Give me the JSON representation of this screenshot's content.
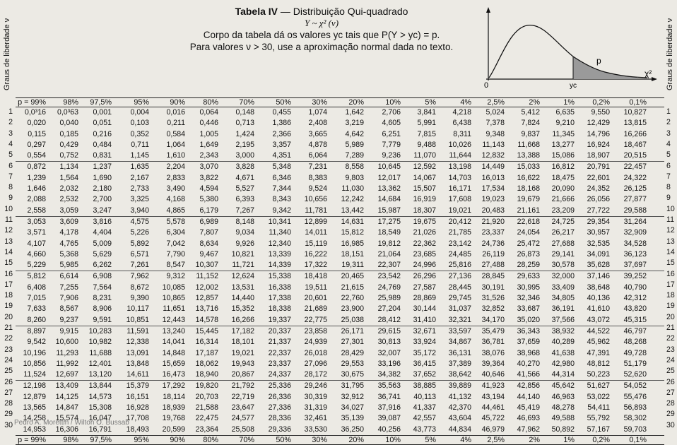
{
  "side_label": "Graus de liberdade ν",
  "header": {
    "title_bold": "Tabela IV",
    "title_rest": " — Distribuição Qui-quadrado",
    "subtitle": "Y ~ χ² (ν)",
    "line1": "Corpo da tabela dá os valores yc tais que P(Y > yc) = p.",
    "line2": "Para valores ν > 30, use a aproximação normal dada no texto."
  },
  "graph": {
    "origin_label": "0",
    "p_label": "p",
    "axis_label": "χ²",
    "yc_label": "yc"
  },
  "columns": [
    "p = 99%",
    "98%",
    "97,5%",
    "95%",
    "90%",
    "80%",
    "70%",
    "50%",
    "30%",
    "20%",
    "10%",
    "5%",
    "4%",
    "2,5%",
    "2%",
    "1%",
    "0,2%",
    "0,1%"
  ],
  "footer_columns": [
    "p = 99%",
    "98%",
    "97,5%",
    "95%",
    "90%",
    "80%",
    "70%",
    "50%",
    "30%",
    "20%",
    "10%",
    "5%",
    "4%",
    "2,5%",
    "2%",
    "1%",
    "0,2%",
    "0,1%"
  ],
  "rows": [
    {
      "df": "1",
      "values": [
        "0,0³16",
        "0,0³63",
        "0,001",
        "0,004",
        "0,016",
        "0,064",
        "0,148",
        "0,455",
        "1,074",
        "1,642",
        "2,706",
        "3,841",
        "4,218",
        "5,024",
        "5,412",
        "6,635",
        "9,550",
        "10,827"
      ]
    },
    {
      "df": "2",
      "values": [
        "0,020",
        "0,040",
        "0,051",
        "0,103",
        "0,211",
        "0,446",
        "0,713",
        "1,386",
        "2,408",
        "3,219",
        "4,605",
        "5,991",
        "6,438",
        "7,378",
        "7,824",
        "9,210",
        "12,429",
        "13,815"
      ]
    },
    {
      "df": "3",
      "values": [
        "0,115",
        "0,185",
        "0,216",
        "0,352",
        "0,584",
        "1,005",
        "1,424",
        "2,366",
        "3,665",
        "4,642",
        "6,251",
        "7,815",
        "8,311",
        "9,348",
        "9,837",
        "11,345",
        "14,796",
        "16,266"
      ]
    },
    {
      "df": "4",
      "values": [
        "0,297",
        "0,429",
        "0,484",
        "0,711",
        "1,064",
        "1,649",
        "2,195",
        "3,357",
        "4,878",
        "5,989",
        "7,779",
        "9,488",
        "10,026",
        "11,143",
        "11,668",
        "13,277",
        "16,924",
        "18,467"
      ]
    },
    {
      "df": "5",
      "values": [
        "0,554",
        "0,752",
        "0,831",
        "1,145",
        "1,610",
        "2,343",
        "3,000",
        "4,351",
        "6,064",
        "7,289",
        "9,236",
        "11,070",
        "11,644",
        "12,832",
        "13,388",
        "15,086",
        "18,907",
        "20,515"
      ]
    },
    {
      "df": "6",
      "values": [
        "0,872",
        "1,134",
        "1,237",
        "1,635",
        "2,204",
        "3,070",
        "3,828",
        "5,348",
        "7,231",
        "8,558",
        "10,645",
        "12,592",
        "13,198",
        "14,449",
        "15,033",
        "16,812",
        "20,791",
        "22,457"
      ]
    },
    {
      "df": "7",
      "values": [
        "1,239",
        "1,564",
        "1,690",
        "2,167",
        "2,833",
        "3,822",
        "4,671",
        "6,346",
        "8,383",
        "9,803",
        "12,017",
        "14,067",
        "14,703",
        "16,013",
        "16,622",
        "18,475",
        "22,601",
        "24,322"
      ]
    },
    {
      "df": "8",
      "values": [
        "1,646",
        "2,032",
        "2,180",
        "2,733",
        "3,490",
        "4,594",
        "5,527",
        "7,344",
        "9,524",
        "11,030",
        "13,362",
        "15,507",
        "16,171",
        "17,534",
        "18,168",
        "20,090",
        "24,352",
        "26,125"
      ]
    },
    {
      "df": "9",
      "values": [
        "2,088",
        "2,532",
        "2,700",
        "3,325",
        "4,168",
        "5,380",
        "6,393",
        "8,343",
        "10,656",
        "12,242",
        "14,684",
        "16,919",
        "17,608",
        "19,023",
        "19,679",
        "21,666",
        "26,056",
        "27,877"
      ]
    },
    {
      "df": "10",
      "values": [
        "2,558",
        "3,059",
        "3,247",
        "3,940",
        "4,865",
        "6,179",
        "7,267",
        "9,342",
        "11,781",
        "13,442",
        "15,987",
        "18,307",
        "19,021",
        "20,483",
        "21,161",
        "23,209",
        "27,722",
        "29,588"
      ]
    },
    {
      "df": "11",
      "values": [
        "3,053",
        "3,609",
        "3,816",
        "4,575",
        "5,578",
        "6,989",
        "8,148",
        "10,341",
        "12,899",
        "14,631",
        "17,275",
        "19,675",
        "20,412",
        "21,920",
        "22,618",
        "24,725",
        "29,354",
        "31,264"
      ]
    },
    {
      "df": "12",
      "values": [
        "3,571",
        "4,178",
        "4,404",
        "5,226",
        "6,304",
        "7,807",
        "9,034",
        "11,340",
        "14,011",
        "15,812",
        "18,549",
        "21,026",
        "21,785",
        "23,337",
        "24,054",
        "26,217",
        "30,957",
        "32,909"
      ]
    },
    {
      "df": "13",
      "values": [
        "4,107",
        "4,765",
        "5,009",
        "5,892",
        "7,042",
        "8,634",
        "9,926",
        "12,340",
        "15,119",
        "16,985",
        "19,812",
        "22,362",
        "23,142",
        "24,736",
        "25,472",
        "27,688",
        "32,535",
        "34,528"
      ]
    },
    {
      "df": "14",
      "values": [
        "4,660",
        "5,368",
        "5,629",
        "6,571",
        "7,790",
        "9,467",
        "10,821",
        "13,339",
        "16,222",
        "18,151",
        "21,064",
        "23,685",
        "24,485",
        "26,119",
        "26,873",
        "29,141",
        "34,091",
        "36,123"
      ]
    },
    {
      "df": "15",
      "values": [
        "5,229",
        "5,985",
        "6,262",
        "7,261",
        "8,547",
        "10,307",
        "11,721",
        "14,339",
        "17,322",
        "19,311",
        "22,307",
        "24,996",
        "25,816",
        "27,488",
        "28,259",
        "30,578",
        "35,628",
        "37,697"
      ]
    },
    {
      "df": "16",
      "values": [
        "5,812",
        "6,614",
        "6,908",
        "7,962",
        "9,312",
        "11,152",
        "12,624",
        "15,338",
        "18,418",
        "20,465",
        "23,542",
        "26,296",
        "27,136",
        "28,845",
        "29,633",
        "32,000",
        "37,146",
        "39,252"
      ]
    },
    {
      "df": "17",
      "values": [
        "6,408",
        "7,255",
        "7,564",
        "8,672",
        "10,085",
        "12,002",
        "13,531",
        "16,338",
        "19,511",
        "21,615",
        "24,769",
        "27,587",
        "28,445",
        "30,191",
        "30,995",
        "33,409",
        "38,648",
        "40,790"
      ]
    },
    {
      "df": "18",
      "values": [
        "7,015",
        "7,906",
        "8,231",
        "9,390",
        "10,865",
        "12,857",
        "14,440",
        "17,338",
        "20,601",
        "22,760",
        "25,989",
        "28,869",
        "29,745",
        "31,526",
        "32,346",
        "34,805",
        "40,136",
        "42,312"
      ]
    },
    {
      "df": "19",
      "values": [
        "7,633",
        "8,567",
        "8,906",
        "10,117",
        "11,651",
        "13,716",
        "15,352",
        "18,338",
        "21,689",
        "23,900",
        "27,204",
        "30,144",
        "31,037",
        "32,852",
        "33,687",
        "36,191",
        "41,610",
        "43,820"
      ]
    },
    {
      "df": "20",
      "values": [
        "8,260",
        "9,237",
        "9,591",
        "10,851",
        "12,443",
        "14,578",
        "16,266",
        "19,337",
        "22,775",
        "25,038",
        "28,412",
        "31,410",
        "32,321",
        "34,170",
        "35,020",
        "37,566",
        "43,072",
        "45,315"
      ]
    },
    {
      "df": "21",
      "values": [
        "8,897",
        "9,915",
        "10,283",
        "11,591",
        "13,240",
        "15,445",
        "17,182",
        "20,337",
        "23,858",
        "26,171",
        "29,615",
        "32,671",
        "33,597",
        "35,479",
        "36,343",
        "38,932",
        "44,522",
        "46,797"
      ]
    },
    {
      "df": "22",
      "values": [
        "9,542",
        "10,600",
        "10,982",
        "12,338",
        "14,041",
        "16,314",
        "18,101",
        "21,337",
        "24,939",
        "27,301",
        "30,813",
        "33,924",
        "34,867",
        "36,781",
        "37,659",
        "40,289",
        "45,962",
        "48,268"
      ]
    },
    {
      "df": "23",
      "values": [
        "10,196",
        "11,293",
        "11,688",
        "13,091",
        "14,848",
        "17,187",
        "19,021",
        "22,337",
        "26,018",
        "28,429",
        "32,007",
        "35,172",
        "36,131",
        "38,076",
        "38,968",
        "41,638",
        "47,391",
        "49,728"
      ]
    },
    {
      "df": "24",
      "values": [
        "10,856",
        "11,992",
        "12,401",
        "13,848",
        "15,659",
        "18,062",
        "19,943",
        "23,337",
        "27,096",
        "29,553",
        "33,196",
        "36,415",
        "37,389",
        "39,364",
        "40,270",
        "42,980",
        "48,812",
        "51,179"
      ]
    },
    {
      "df": "25",
      "values": [
        "11,524",
        "12,697",
        "13,120",
        "14,611",
        "16,473",
        "18,940",
        "20,867",
        "24,337",
        "28,172",
        "30,675",
        "34,382",
        "37,652",
        "38,642",
        "40,646",
        "41,566",
        "44,314",
        "50,223",
        "52,620"
      ]
    },
    {
      "df": "26",
      "values": [
        "12,198",
        "13,409",
        "13,844",
        "15,379",
        "17,292",
        "19,820",
        "21,792",
        "25,336",
        "29,246",
        "31,795",
        "35,563",
        "38,885",
        "39,889",
        "41,923",
        "42,856",
        "45,642",
        "51,627",
        "54,052"
      ]
    },
    {
      "df": "27",
      "values": [
        "12,879",
        "14,125",
        "14,573",
        "16,151",
        "18,114",
        "20,703",
        "22,719",
        "26,336",
        "30,319",
        "32,912",
        "36,741",
        "40,113",
        "41,132",
        "43,194",
        "44,140",
        "46,963",
        "53,022",
        "55,476"
      ]
    },
    {
      "df": "28",
      "values": [
        "13,565",
        "14,847",
        "15,308",
        "16,928",
        "18,939",
        "21,588",
        "23,647",
        "27,336",
        "31,319",
        "34,027",
        "37,916",
        "41,337",
        "42,370",
        "44,461",
        "45,419",
        "48,278",
        "54,411",
        "56,893"
      ]
    },
    {
      "df": "29",
      "values": [
        "14,258",
        "15,574",
        "16,047",
        "17,708",
        "19,768",
        "22,475",
        "24,577",
        "28,336",
        "32,461",
        "35,139",
        "39,087",
        "42,557",
        "43,604",
        "45,722",
        "46,693",
        "49,588",
        "55,792",
        "58,302"
      ]
    },
    {
      "df": "30",
      "values": [
        "14,953",
        "16,306",
        "16,791",
        "18,493",
        "20,599",
        "23,364",
        "25,508",
        "29,336",
        "33,530",
        "36,250",
        "40,256",
        "43,773",
        "44,834",
        "46,979",
        "47,962",
        "50,892",
        "57,167",
        "59,703"
      ]
    }
  ],
  "watermark": "Pedro A. Morettin / Wilton O. Bussab"
}
